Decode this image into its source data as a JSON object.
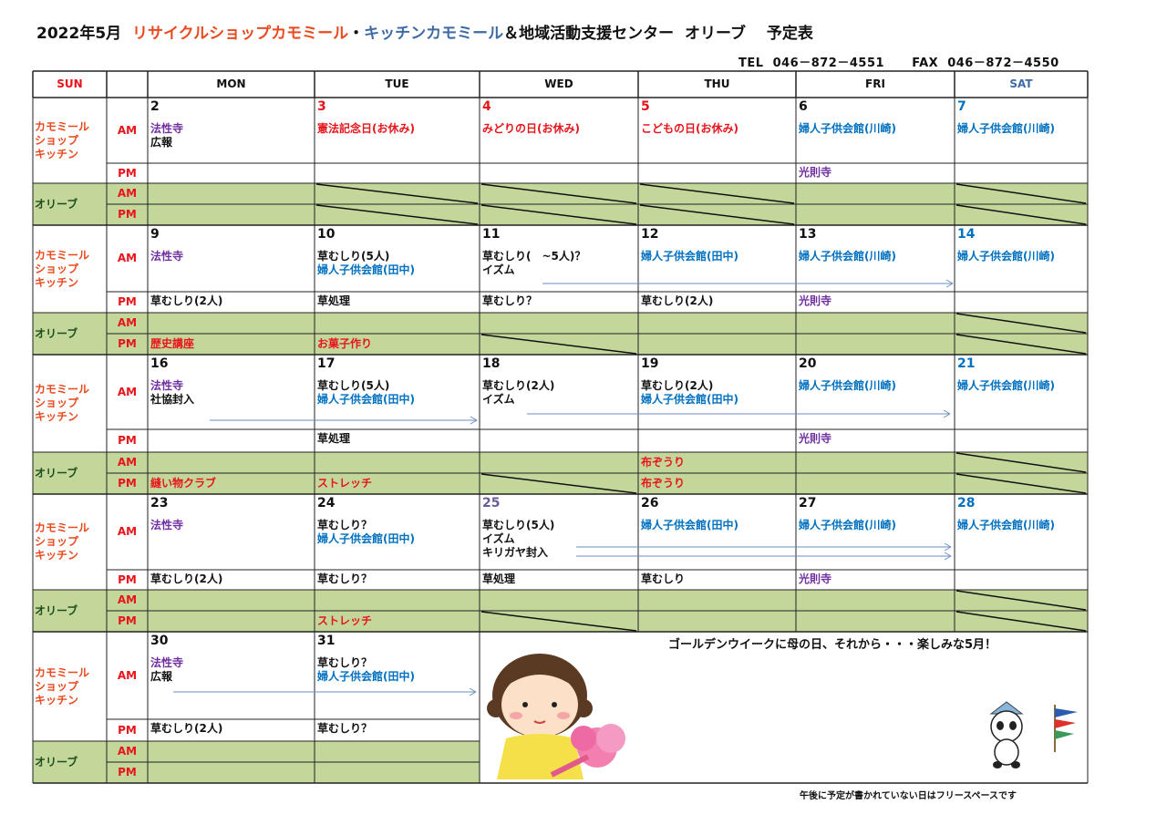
{
  "title": {
    "month": "2022年5月",
    "shop": "リサイクルショップカモミール",
    "dot": "・",
    "kitchen": "キッチンカモミール",
    "rest": "＆地域活動支援センター  オリーブ　 予定表"
  },
  "contact": "TEL  046－872－4551      FAX  046－872－4550",
  "colors": {
    "red": "#e8141b",
    "purple": "#7030a0",
    "blue": "#0070c0",
    "black": "#111111",
    "green_fill": "#c4d79b",
    "date_purple": "#6d5b97",
    "shop_orange": "#ea4a1f",
    "kitchen_blue": "#3f6aa6",
    "olive_green": "#1e4d1e"
  },
  "header": {
    "sun": "SUN",
    "blank": "",
    "days": [
      "MON",
      "TUE",
      "WED",
      "THU",
      "FRI",
      "SAT"
    ]
  },
  "labels": {
    "kamomile": "カモミール\nショップ\nキッチン",
    "olive": "オリーブ",
    "am": "AM",
    "pm": "PM"
  },
  "weeks": [
    {
      "days": [
        {
          "date": "2",
          "dc": "black",
          "am": [
            {
              "t": "法性寺",
              "c": "purple"
            },
            {
              "t": "広報",
              "c": "black"
            }
          ],
          "pm": [],
          "oam": "",
          "opm": ""
        },
        {
          "date": "3",
          "dc": "red",
          "am": [
            {
              "t": "憲法記念日(お休み)",
              "c": "red"
            }
          ],
          "pm": [],
          "oam": "",
          "opm": ""
        },
        {
          "date": "4",
          "dc": "red",
          "am": [
            {
              "t": "みどりの日(お休み)",
              "c": "red"
            }
          ],
          "pm": [],
          "oam": "",
          "opm": ""
        },
        {
          "date": "5",
          "dc": "red",
          "am": [
            {
              "t": "こどもの日(お休み)",
              "c": "red"
            }
          ],
          "pm": [],
          "oam": "",
          "opm": ""
        },
        {
          "date": "6",
          "dc": "black",
          "am": [
            {
              "t": "婦人子供会館(川崎)",
              "c": "blue"
            }
          ],
          "pm": [
            {
              "t": "光則寺",
              "c": "purple"
            }
          ],
          "oam": "",
          "opm": ""
        },
        {
          "date": "7",
          "dc": "blue",
          "am": [
            {
              "t": "婦人子供会館(川崎)",
              "c": "blue"
            }
          ],
          "pm": [],
          "oam": "",
          "opm": ""
        }
      ]
    },
    {
      "days": [
        {
          "date": "9",
          "dc": "black",
          "am": [
            {
              "t": "法性寺",
              "c": "purple"
            }
          ],
          "pm": [
            {
              "t": "草むしり(2人)",
              "c": "black"
            }
          ],
          "oam": "",
          "opm": "歴史講座"
        },
        {
          "date": "10",
          "dc": "black",
          "am": [
            {
              "t": "草むしり(5人)",
              "c": "black"
            },
            {
              "t": "婦人子供会館(田中)",
              "c": "blue"
            }
          ],
          "pm": [
            {
              "t": "草処理",
              "c": "black"
            }
          ],
          "oam": "",
          "opm": "お菓子作り"
        },
        {
          "date": "11",
          "dc": "black",
          "am": [
            {
              "t": "草むしり(　~5人)？",
              "c": "black"
            },
            {
              "t": "イズム",
              "c": "black"
            }
          ],
          "pm": [
            {
              "t": "草むしり？",
              "c": "black"
            }
          ],
          "oam": "",
          "opm": ""
        },
        {
          "date": "12",
          "dc": "black",
          "am": [
            {
              "t": "婦人子供会館(田中)",
              "c": "blue"
            }
          ],
          "pm": [
            {
              "t": "草むしり(2人)",
              "c": "black"
            }
          ],
          "oam": "",
          "opm": ""
        },
        {
          "date": "13",
          "dc": "black",
          "am": [
            {
              "t": "婦人子供会館(川崎)",
              "c": "blue"
            }
          ],
          "pm": [
            {
              "t": "光則寺",
              "c": "purple"
            }
          ],
          "oam": "",
          "opm": ""
        },
        {
          "date": "14",
          "dc": "blue",
          "am": [
            {
              "t": "婦人子供会館(川崎)",
              "c": "blue"
            }
          ],
          "pm": [],
          "oam": "",
          "opm": ""
        }
      ]
    },
    {
      "days": [
        {
          "date": "16",
          "dc": "black",
          "am": [
            {
              "t": "法性寺",
              "c": "purple"
            },
            {
              "t": "社協封入",
              "c": "black"
            }
          ],
          "pm": [],
          "oam": "",
          "opm": "縫い物クラブ"
        },
        {
          "date": "17",
          "dc": "black",
          "am": [
            {
              "t": "草むしり(5人)",
              "c": "black"
            },
            {
              "t": "婦人子供会館(田中)",
              "c": "blue"
            }
          ],
          "pm": [
            {
              "t": "草処理",
              "c": "black"
            }
          ],
          "oam": "",
          "opm": "ストレッチ"
        },
        {
          "date": "18",
          "dc": "black",
          "am": [
            {
              "t": "草むしり(2人)",
              "c": "black"
            },
            {
              "t": "イズム",
              "c": "black"
            }
          ],
          "pm": [],
          "oam": "",
          "opm": ""
        },
        {
          "date": "19",
          "dc": "black",
          "am": [
            {
              "t": "草むしり(2人)",
              "c": "black"
            },
            {
              "t": "婦人子供会館(田中)",
              "c": "blue"
            }
          ],
          "pm": [],
          "oam": "布ぞうり",
          "opm": "布ぞうり"
        },
        {
          "date": "20",
          "dc": "black",
          "am": [
            {
              "t": "婦人子供会館(川崎)",
              "c": "blue"
            }
          ],
          "pm": [
            {
              "t": "光則寺",
              "c": "purple"
            }
          ],
          "oam": "",
          "opm": ""
        },
        {
          "date": "21",
          "dc": "blue",
          "am": [
            {
              "t": "婦人子供会館(川崎)",
              "c": "blue"
            }
          ],
          "pm": [],
          "oam": "",
          "opm": ""
        }
      ]
    },
    {
      "days": [
        {
          "date": "23",
          "dc": "black",
          "am": [
            {
              "t": "法性寺",
              "c": "purple"
            }
          ],
          "pm": [
            {
              "t": "草むしり(2人)",
              "c": "black"
            }
          ],
          "oam": "",
          "opm": ""
        },
        {
          "date": "24",
          "dc": "black",
          "am": [
            {
              "t": "草むしり？",
              "c": "black"
            },
            {
              "t": "婦人子供会館(田中)",
              "c": "blue"
            }
          ],
          "pm": [
            {
              "t": "草むしり？",
              "c": "black"
            }
          ],
          "oam": "",
          "opm": "ストレッチ"
        },
        {
          "date": "25",
          "dc": "date_purple",
          "am": [
            {
              "t": "草むしり(5人)",
              "c": "black"
            },
            {
              "t": "イズム",
              "c": "black"
            },
            {
              "t": "キリガヤ封入",
              "c": "black"
            }
          ],
          "pm": [
            {
              "t": "草処理",
              "c": "black"
            }
          ],
          "oam": "",
          "opm": ""
        },
        {
          "date": "26",
          "dc": "black",
          "am": [
            {
              "t": "婦人子供会館(田中)",
              "c": "blue"
            }
          ],
          "pm": [
            {
              "t": "草むしり",
              "c": "black"
            }
          ],
          "oam": "",
          "opm": ""
        },
        {
          "date": "27",
          "dc": "black",
          "am": [
            {
              "t": "婦人子供会館(川崎)",
              "c": "blue"
            }
          ],
          "pm": [
            {
              "t": "光則寺",
              "c": "purple"
            }
          ],
          "oam": "",
          "opm": ""
        },
        {
          "date": "28",
          "dc": "blue",
          "am": [
            {
              "t": "婦人子供会館(川崎)",
              "c": "blue"
            }
          ],
          "pm": [],
          "oam": "",
          "opm": ""
        }
      ]
    },
    {
      "days": [
        {
          "date": "30",
          "dc": "black",
          "am": [
            {
              "t": "法性寺",
              "c": "purple"
            },
            {
              "t": "広報",
              "c": "black"
            }
          ],
          "pm": [
            {
              "t": "草むしり(2人)",
              "c": "black"
            }
          ],
          "oam": "",
          "opm": ""
        },
        {
          "date": "31",
          "dc": "black",
          "am": [
            {
              "t": "草むしり？",
              "c": "black"
            },
            {
              "t": "婦人子供会館(田中)",
              "c": "blue"
            }
          ],
          "pm": [
            {
              "t": "草むしり？",
              "c": "black"
            }
          ],
          "oam": "",
          "opm": ""
        }
      ]
    }
  ],
  "message": "ゴールデンウイークに母の日、それから・・・楽しみな5月！",
  "footnote": "午後に予定が書かれていない日はフリースペースです",
  "illustrations": [
    "girl-with-flowers",
    "panda-with-koinobori"
  ]
}
